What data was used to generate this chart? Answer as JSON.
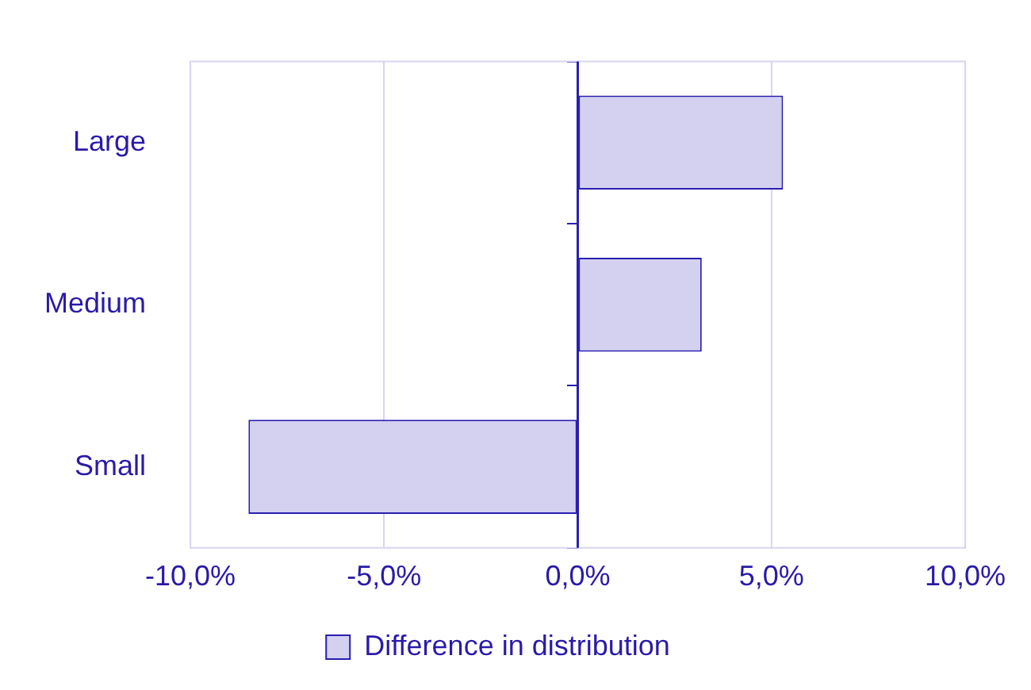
{
  "chart_data": {
    "type": "bar",
    "orientation": "horizontal",
    "categories": [
      "Large",
      "Medium",
      "Small"
    ],
    "series": [
      {
        "name": "Difference in distribution",
        "color": "#d4d0f0",
        "values": [
          5.3,
          3.2,
          -8.5
        ]
      }
    ],
    "xlim": [
      -10,
      10
    ],
    "xticks": [
      {
        "value": -10,
        "label": "-10,0%"
      },
      {
        "value": -5,
        "label": "-5,0%"
      },
      {
        "value": 0,
        "label": "0,0%"
      },
      {
        "value": 5,
        "label": "5,0%"
      },
      {
        "value": 10,
        "label": "10,0%"
      }
    ],
    "ref_lines": [
      {
        "axis": "x",
        "value": 0,
        "color": "#2a1fb0"
      }
    ],
    "grid": "x",
    "legend": "bottom"
  }
}
